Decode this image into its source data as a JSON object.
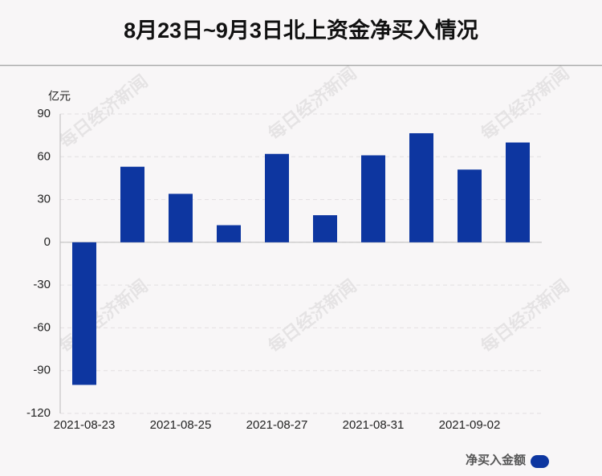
{
  "chart_data": {
    "type": "bar",
    "title": "8月23日~9月3日北上资金净买入情况",
    "y_unit": "亿元",
    "watermark": "每日经济新闻",
    "categories": [
      "2021-08-23",
      null,
      "2021-08-25",
      null,
      "2021-08-27",
      null,
      "2021-08-31",
      null,
      "2021-09-02",
      null
    ],
    "series": [
      {
        "name": "净买入金额",
        "color": "#0d36a0",
        "values": [
          -100,
          53,
          34,
          12,
          62,
          19,
          61,
          76.5,
          51,
          70
        ]
      }
    ],
    "ylim": [
      -120,
      90
    ],
    "yticks": [
      -120,
      -90,
      -60,
      -30,
      0,
      30,
      60,
      90
    ],
    "grid": true
  }
}
